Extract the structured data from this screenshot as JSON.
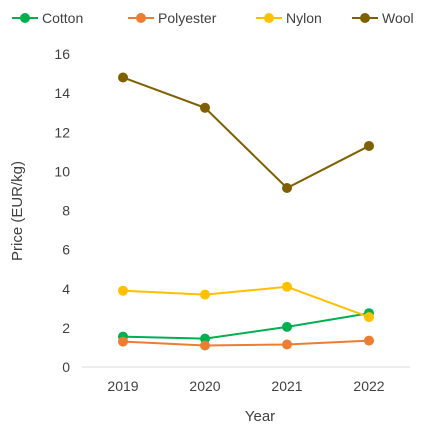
{
  "chart_data": {
    "type": "line",
    "title": "",
    "xlabel": "Year",
    "ylabel": "Price  (EUR/kg)",
    "categories": [
      "2019",
      "2020",
      "2021",
      "2022"
    ],
    "ylim": [
      0,
      16
    ],
    "yticks": [
      0,
      2,
      4,
      6,
      8,
      10,
      12,
      14,
      16
    ],
    "grid": false,
    "legend_position": "top",
    "series": [
      {
        "name": "Cotton",
        "color": "#00B050",
        "values": [
          1.55,
          1.45,
          2.05,
          2.75
        ]
      },
      {
        "name": "Polyester",
        "color": "#ED7D31",
        "values": [
          1.3,
          1.1,
          1.15,
          1.35
        ]
      },
      {
        "name": "Nylon",
        "color": "#FFC000",
        "values": [
          3.9,
          3.7,
          4.1,
          2.55
        ]
      },
      {
        "name": "Wool",
        "color": "#7F6000",
        "values": [
          14.8,
          13.25,
          9.15,
          11.3
        ]
      }
    ]
  }
}
